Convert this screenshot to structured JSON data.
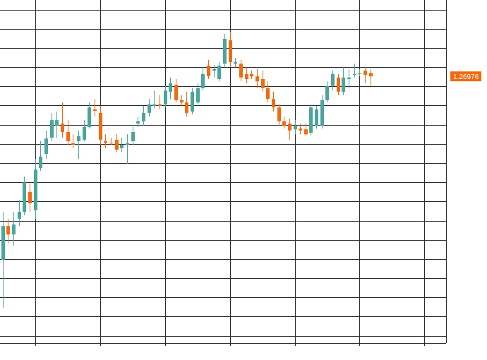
{
  "chart_data": {
    "type": "candlestick",
    "up_color": "#4aa59c",
    "down_color": "#f26a10",
    "ylim": [
      1.26281,
      1.27175
    ],
    "yticks": [
      1.263,
      1.2635,
      1.264,
      1.2645,
      1.265,
      1.2655,
      1.266,
      1.2665,
      1.267,
      1.2675,
      1.268,
      1.2685,
      1.269,
      1.2695,
      1.27,
      1.2705,
      1.271,
      1.2715
    ],
    "xlim": [
      -0.5,
      82
    ],
    "xticks": [
      6,
      18,
      30,
      42,
      54,
      66,
      78
    ],
    "grid": true,
    "last_price": 1.26976,
    "open": [
      1.26498,
      1.26586,
      1.26564,
      1.26605,
      1.26623,
      1.26675,
      1.26627,
      1.26737,
      1.26774,
      1.26816,
      1.26847,
      1.26853,
      1.26831,
      1.26802,
      1.26807,
      1.26811,
      1.26844,
      1.2689,
      1.26881,
      1.26807,
      1.26803,
      1.26811,
      1.26789,
      1.26798,
      1.26807,
      1.26853,
      1.26859,
      1.26881,
      1.26899,
      1.26903,
      1.26903,
      1.26936,
      1.26954,
      1.26914,
      1.26908,
      1.26884,
      1.26908,
      1.26945,
      1.27004,
      1.26991,
      1.26969,
      1.27009,
      1.2707,
      1.27009,
      1.27009,
      1.26982,
      1.26982,
      1.26976,
      1.26969,
      1.26945,
      1.26917,
      1.26895,
      1.26859,
      1.26853,
      1.26838,
      1.2684,
      1.26838,
      1.26829,
      1.26847,
      1.26847,
      1.26914,
      1.26951,
      1.26973,
      1.26936,
      1.26969,
      1.2698,
      1.26982,
      1.26991,
      1.26985
    ],
    "high": [
      1.26623,
      1.26605,
      1.26623,
      1.26654,
      1.26715,
      1.26697,
      1.26761,
      1.26807,
      1.26835,
      1.26881,
      1.26884,
      1.26908,
      1.26862,
      1.26825,
      1.26835,
      1.26862,
      1.26908,
      1.26917,
      1.26899,
      1.26825,
      1.26816,
      1.26825,
      1.26816,
      1.26825,
      1.26844,
      1.26871,
      1.26899,
      1.26917,
      1.26939,
      1.26927,
      1.26951,
      1.26973,
      1.26969,
      1.26927,
      1.26936,
      1.26945,
      1.26958,
      1.27,
      1.27019,
      1.27006,
      1.27013,
      1.27087,
      1.27092,
      1.27024,
      1.27019,
      1.27,
      1.26991,
      1.26995,
      1.26991,
      1.26963,
      1.26936,
      1.26903,
      1.26871,
      1.26866,
      1.26862,
      1.26853,
      1.26853,
      1.26903,
      1.26899,
      1.26927,
      1.26963,
      1.26991,
      1.26982,
      1.27,
      1.26995,
      1.27009,
      1.26995,
      1.27,
      1.26995
    ],
    "low": [
      1.26373,
      1.2654,
      1.26535,
      1.26586,
      1.26614,
      1.26623,
      1.26605,
      1.2673,
      1.26761,
      1.26807,
      1.26816,
      1.26816,
      1.26798,
      1.26789,
      1.26761,
      1.26807,
      1.2684,
      1.26871,
      1.26798,
      1.26789,
      1.26798,
      1.26779,
      1.26779,
      1.26748,
      1.26798,
      1.26844,
      1.26847,
      1.26871,
      1.26893,
      1.2689,
      1.26895,
      1.26917,
      1.26908,
      1.26899,
      1.26871,
      1.26877,
      1.26903,
      1.26939,
      1.26969,
      1.26973,
      1.26963,
      1.27,
      1.27,
      1.27,
      1.26963,
      1.26958,
      1.26969,
      1.26945,
      1.26936,
      1.26908,
      1.26884,
      1.26847,
      1.2684,
      1.26811,
      1.26825,
      1.26825,
      1.26822,
      1.26822,
      1.2684,
      1.2684,
      1.26908,
      1.26939,
      1.26927,
      1.26927,
      1.26945,
      1.26973,
      1.26976,
      1.26958,
      1.26951
    ],
    "close": [
      1.26586,
      1.26564,
      1.2659,
      1.26623,
      1.267,
      1.26645,
      1.26733,
      1.26767,
      1.26814,
      1.26862,
      1.26862,
      1.26831,
      1.26807,
      1.26798,
      1.2682,
      1.26844,
      1.26895,
      1.26886,
      1.26811,
      1.26803,
      1.26802,
      1.26785,
      1.26798,
      1.26802,
      1.26831,
      1.26859,
      1.26881,
      1.26903,
      1.26903,
      1.26899,
      1.26939,
      1.26958,
      1.26914,
      1.26908,
      1.26881,
      1.26936,
      1.26945,
      1.26982,
      1.26976,
      1.26995,
      1.27004,
      1.27074,
      1.27013,
      1.27013,
      1.26973,
      1.26969,
      1.26976,
      1.26963,
      1.26945,
      1.26917,
      1.26895,
      1.26859,
      1.26847,
      1.26835,
      1.26847,
      1.26835,
      1.26825,
      1.26895,
      1.2689,
      1.26914,
      1.26951,
      1.26982,
      1.26936,
      1.26973,
      1.26973,
      1.26982,
      1.26984,
      1.2698,
      1.26976
    ]
  }
}
